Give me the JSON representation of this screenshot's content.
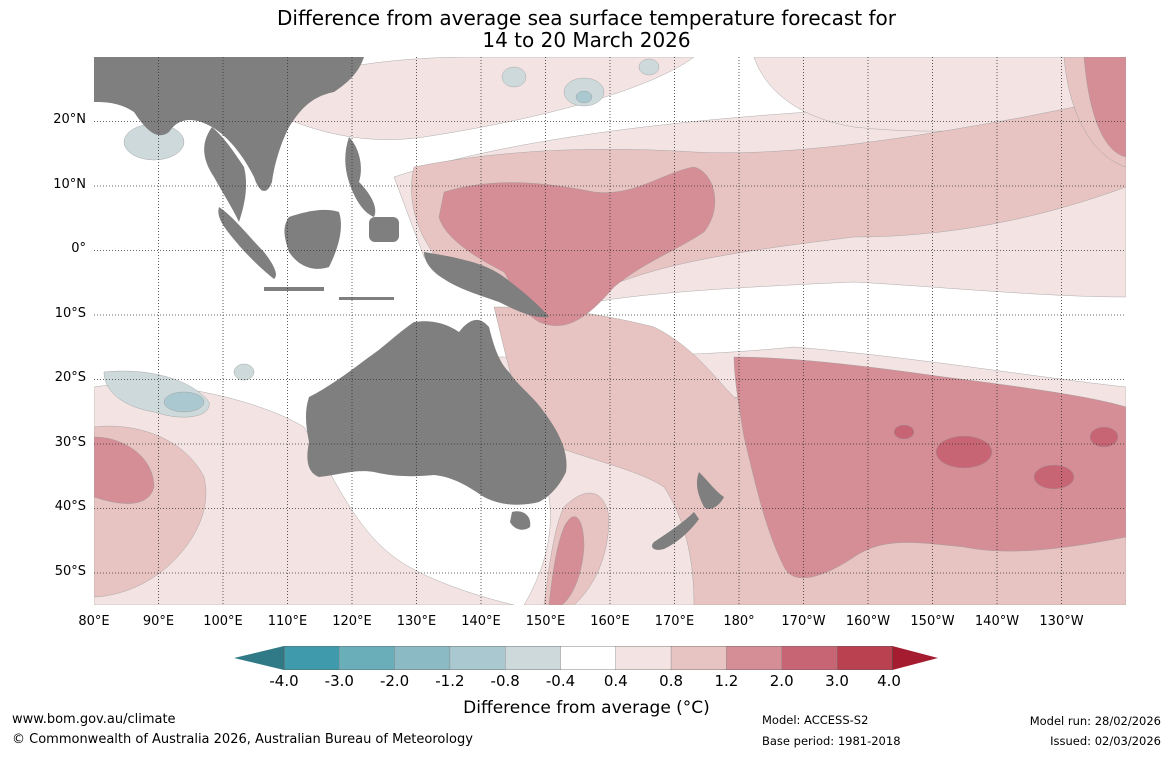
{
  "title": {
    "line1": "Difference from average sea surface temperature forecast for",
    "line2": "14 to 20 March 2026"
  },
  "map": {
    "lat_labels": [
      "20°N",
      "10°N",
      "0°",
      "10°S",
      "20°S",
      "30°S",
      "40°S",
      "50°S"
    ],
    "lon_labels": [
      "80°E",
      "90°E",
      "100°E",
      "110°E",
      "120°E",
      "130°E",
      "140°E",
      "150°E",
      "160°E",
      "170°E",
      "180°",
      "170°W",
      "160°W",
      "150°W",
      "140°W",
      "130°W"
    ],
    "colors": {
      "land": "#7f7f7f",
      "neutral": "#ffffff",
      "warm_1": "#f3e4e3",
      "warm_2": "#e7c4c2",
      "warm_3": "#d58e96",
      "warm_4": "#c76575",
      "warm_5": "#b94150",
      "cool_1": "#ced9db",
      "cool_2": "#a9c8cf"
    }
  },
  "colorbar": {
    "ticks": [
      "-4.0",
      "-3.0",
      "-2.0",
      "-1.2",
      "-0.8",
      "-0.4",
      "0.4",
      "0.8",
      "1.2",
      "2.0",
      "3.0",
      "4.0"
    ],
    "segment_colors": [
      "#3f9aab",
      "#6aaeba",
      "#8bbac4",
      "#a9c8cf",
      "#ced9db",
      "#ffffff",
      "#f3e4e3",
      "#e7c4c2",
      "#d58e96",
      "#c76575",
      "#b94150"
    ],
    "low_arrow_color": "#2f7a86",
    "high_arrow_color": "#a51c30",
    "label": "Difference from average (°C)"
  },
  "footer": {
    "website": "www.bom.gov.au/climate",
    "copyright": "© Commonwealth of Australia 2026, Australian Bureau of Meteorology",
    "model": "Model: ACCESS-S2",
    "base_period": "Base period: 1981-2018",
    "model_run": "Model run: 28/02/2026",
    "issued": "Issued: 02/03/2026"
  }
}
